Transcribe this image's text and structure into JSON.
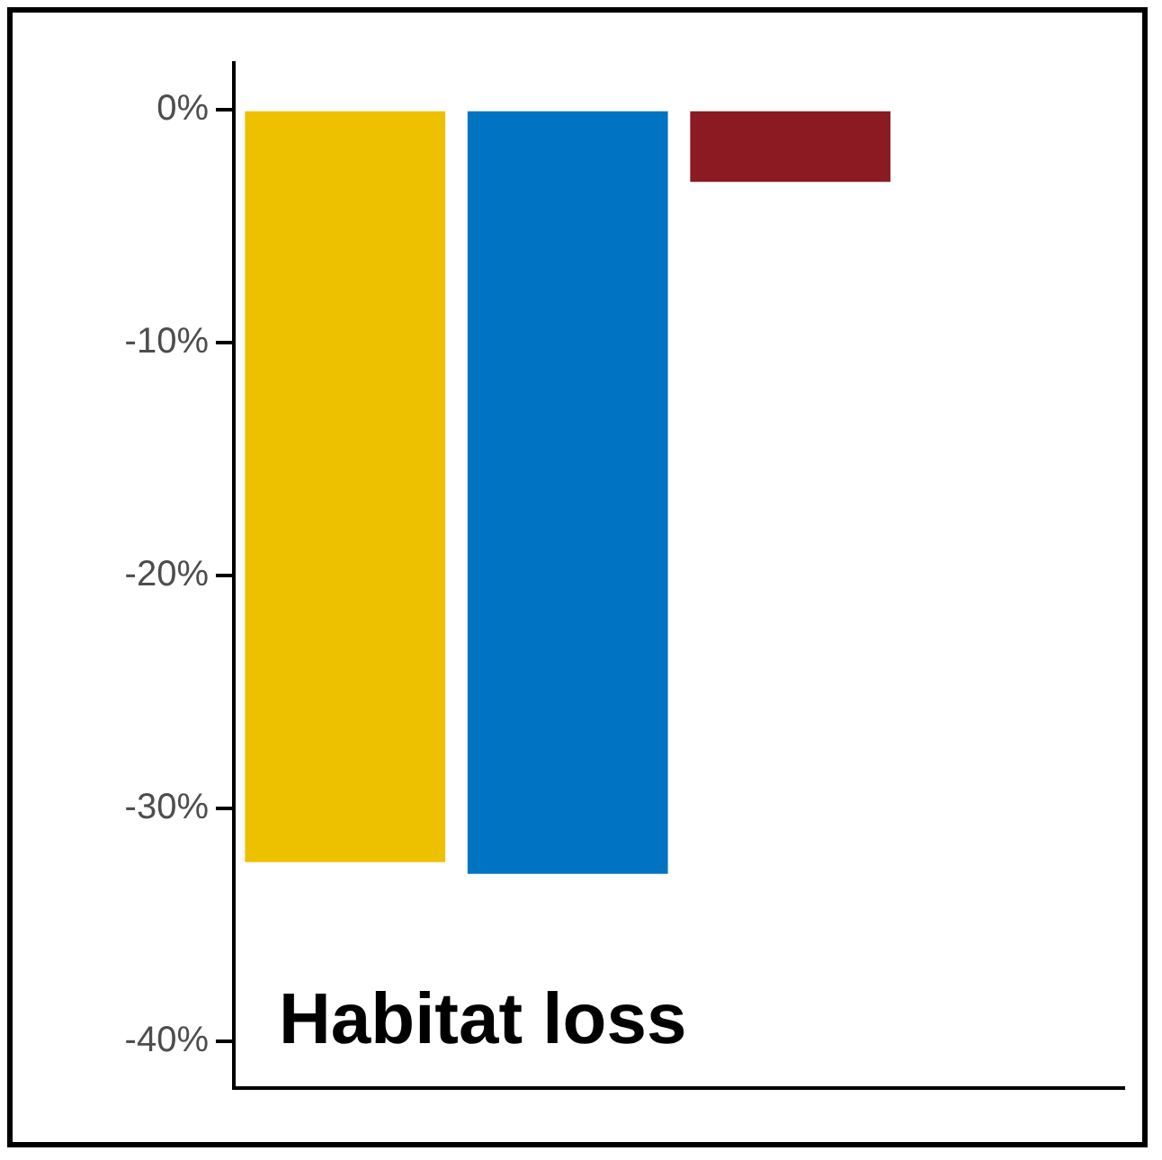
{
  "chart_data": {
    "type": "bar",
    "categories": [
      null,
      null,
      null,
      null
    ],
    "values": [
      -32.3,
      -32.8,
      -3.1,
      null
    ],
    "colors": [
      "#edc000",
      "#0073c2",
      "#8b1a23",
      "#888888"
    ],
    "ylim": [
      -42,
      2
    ],
    "yticks": [
      {
        "value": -40,
        "label": "-40%"
      },
      {
        "value": -30,
        "label": "-30%"
      },
      {
        "value": -20,
        "label": "-20%"
      },
      {
        "value": -10,
        "label": "-10%"
      },
      {
        "value": 0,
        "label": "0%"
      }
    ],
    "annotations": [
      "Habitat loss"
    ],
    "grid": false,
    "legend": false
  }
}
